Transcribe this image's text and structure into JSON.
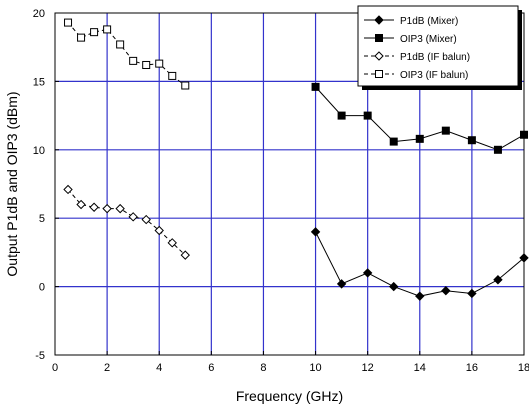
{
  "chart_data": {
    "type": "line",
    "title": "",
    "xlabel": "Frequency (GHz)",
    "ylabel": "Output P1dB and OIP3 (dBm)",
    "xlim": [
      0,
      18
    ],
    "ylim": [
      -5,
      20
    ],
    "xticks": [
      0,
      2,
      4,
      6,
      8,
      10,
      12,
      14,
      16,
      18
    ],
    "yticks": [
      -5,
      0,
      5,
      10,
      15,
      20
    ],
    "grid": true,
    "grid_color": "#3333cc",
    "legend_position": "top-right",
    "series": [
      {
        "name": "P1dB (Mixer)",
        "marker": "filled-diamond",
        "line": "solid",
        "x": [
          10,
          11,
          12,
          13,
          14,
          15,
          16,
          17,
          18
        ],
        "y": [
          4.0,
          0.2,
          1.0,
          0.0,
          -0.7,
          -0.3,
          -0.5,
          0.5,
          2.1
        ]
      },
      {
        "name": "OIP3 (Mixer)",
        "marker": "filled-square",
        "line": "solid",
        "x": [
          10,
          11,
          12,
          13,
          14,
          15,
          16,
          17,
          18
        ],
        "y": [
          14.6,
          12.5,
          12.5,
          10.6,
          10.8,
          11.4,
          10.7,
          10.0,
          11.1
        ]
      },
      {
        "name": "P1dB (IF balun)",
        "marker": "open-diamond",
        "line": "dashed",
        "x": [
          0.5,
          1.0,
          1.5,
          2.0,
          2.5,
          3.0,
          3.5,
          4.0,
          4.5,
          5.0
        ],
        "y": [
          7.1,
          6.0,
          5.8,
          5.7,
          5.7,
          5.1,
          4.9,
          4.1,
          3.2,
          2.3
        ]
      },
      {
        "name": "OIP3 (IF balun)",
        "marker": "open-square",
        "line": "dashed",
        "x": [
          0.5,
          1.0,
          1.5,
          2.0,
          2.5,
          3.0,
          3.5,
          4.0,
          4.5,
          5.0
        ],
        "y": [
          19.3,
          18.2,
          18.6,
          18.8,
          17.7,
          16.5,
          16.2,
          16.3,
          15.4,
          14.7
        ]
      }
    ]
  }
}
